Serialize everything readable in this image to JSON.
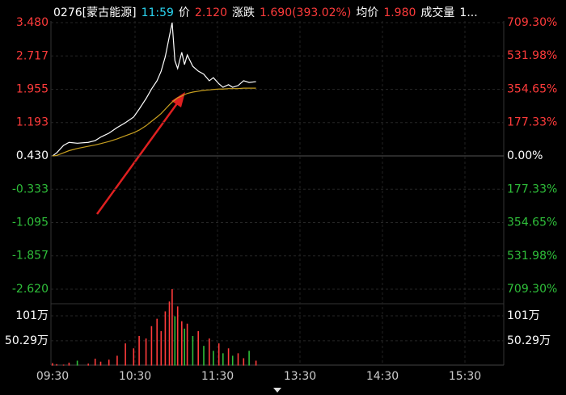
{
  "header": {
    "code": "0276[蒙古能源]",
    "time": "11:59",
    "price_label": "价",
    "price": "2.120",
    "change_label": "涨跌",
    "change": "1.690(393.02%)",
    "avg_label": "均价",
    "avg": "1.980",
    "volume_label": "成交量",
    "volume": "1..."
  },
  "chart_data": {
    "type": "intraday",
    "xlim": [
      0,
      330
    ],
    "xticks": [
      {
        "value": 0,
        "label": "09:30"
      },
      {
        "value": 60,
        "label": "10:30"
      },
      {
        "value": 120,
        "label": "11:30"
      },
      {
        "value": 180,
        "label": "13:30"
      },
      {
        "value": 240,
        "label": "14:30"
      },
      {
        "value": 300,
        "label": "15:30"
      }
    ],
    "ylim": [
      -2.62,
      3.48
    ],
    "yticks": [
      {
        "value": 3.48,
        "label": "3.480"
      },
      2.717,
      1.955,
      1.193,
      {
        "value": 0.43,
        "label": "0.430"
      },
      -0.333,
      -1.095,
      -1.857,
      {
        "value": -2.62,
        "label": "-2.620"
      }
    ],
    "y2lim": [
      -709.3,
      709.3
    ],
    "y2ticks": [
      {
        "value": 709.3,
        "label": "709.30%"
      },
      {
        "value": 531.98,
        "label": "531.98%"
      },
      {
        "value": 354.65,
        "label": "354.65%"
      },
      {
        "value": 177.33,
        "label": "177.33%"
      },
      {
        "value": 0,
        "label": "0.00%"
      },
      {
        "value": -177.33,
        "label": "177.33%"
      },
      {
        "value": -354.65,
        "label": "354.65%"
      },
      {
        "value": -531.98,
        "label": "531.98%"
      },
      {
        "value": -709.3,
        "label": "709.30%"
      }
    ],
    "up_color": "#ff3b3b",
    "down_color": "#2fbf3a",
    "flat_color": "#ffffff",
    "x": [
      0,
      3,
      8,
      12,
      18,
      26,
      31,
      35,
      41,
      47,
      53,
      59,
      63,
      68,
      72,
      76,
      79,
      82,
      85,
      87,
      89,
      91,
      94,
      96,
      98,
      102,
      106,
      110,
      114,
      117,
      121,
      124,
      128,
      131,
      135,
      139,
      143,
      148
    ],
    "series": [
      {
        "color": "#ffffff",
        "values": [
          0.43,
          0.5,
          0.67,
          0.74,
          0.72,
          0.74,
          0.78,
          0.86,
          0.95,
          1.08,
          1.19,
          1.32,
          1.5,
          1.74,
          1.96,
          2.15,
          2.37,
          2.7,
          3.17,
          3.48,
          2.61,
          2.43,
          2.8,
          2.52,
          2.74,
          2.48,
          2.37,
          2.3,
          2.15,
          2.22,
          2.08,
          2.0,
          2.06,
          2.0,
          2.04,
          2.15,
          2.11,
          2.13
        ]
      },
      {
        "color": "#c8a020",
        "values": [
          0.43,
          0.44,
          0.5,
          0.55,
          0.6,
          0.65,
          0.68,
          0.71,
          0.76,
          0.82,
          0.89,
          0.96,
          1.02,
          1.12,
          1.22,
          1.32,
          1.4,
          1.5,
          1.6,
          1.66,
          1.71,
          1.76,
          1.8,
          1.83,
          1.86,
          1.89,
          1.91,
          1.93,
          1.94,
          1.95,
          1.96,
          1.96,
          1.97,
          1.97,
          1.97,
          1.98,
          1.98,
          1.98
        ]
      }
    ],
    "volume": {
      "ylim": [
        0,
        155
      ],
      "yticks": [
        {
          "value": 101,
          "label": "101万"
        },
        {
          "value": 50.29,
          "label": "50.29万"
        }
      ],
      "values": [
        5,
        3,
        2,
        6,
        10,
        4,
        14,
        8,
        12,
        20,
        45,
        35,
        60,
        55,
        80,
        95,
        70,
        110,
        130,
        155,
        100,
        120,
        90,
        75,
        85,
        60,
        70,
        40,
        55,
        30,
        45,
        25,
        35,
        20,
        25,
        15,
        30,
        10
      ],
      "colors": [
        "#ff3b3b",
        "#ff3b3b",
        "#ff3b3b",
        "#ff3b3b",
        "#2fbf3a",
        "#ff3b3b",
        "#ff3b3b",
        "#ff3b3b",
        "#ff3b3b",
        "#ff3b3b",
        "#ff3b3b",
        "#ff3b3b",
        "#ff3b3b",
        "#ff3b3b",
        "#ff3b3b",
        "#ff3b3b",
        "#ff3b3b",
        "#ff3b3b",
        "#ff3b3b",
        "#ff3b3b",
        "#2fbf3a",
        "#ff3b3b",
        "#ff3b3b",
        "#2fbf3a",
        "#ff3b3b",
        "#2fbf3a",
        "#ff3b3b",
        "#2fbf3a",
        "#ff3b3b",
        "#2fbf3a",
        "#ff3b3b",
        "#2fbf3a",
        "#ff3b3b",
        "#2fbf3a",
        "#ff3b3b",
        "#ff3b3b",
        "#2fbf3a",
        "#ff3b3b"
      ]
    }
  }
}
